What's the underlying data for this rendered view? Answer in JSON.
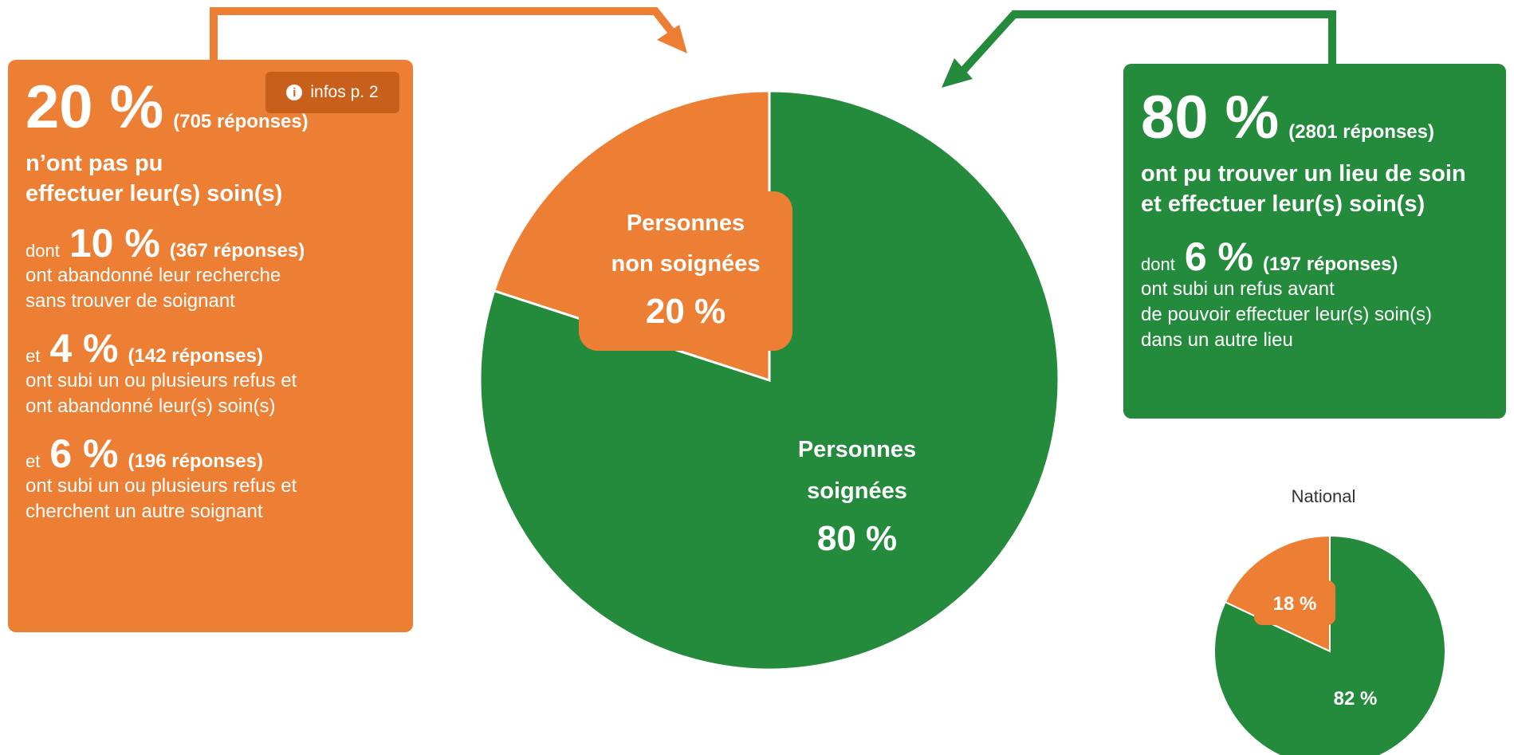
{
  "colors": {
    "orange": "#ec7f34",
    "green": "#248b3c",
    "badge": "#c85f1a"
  },
  "left_panel": {
    "headline": "20 %",
    "headline_responses": "(705 réponses)",
    "headline_text_1": "n’ont pas pu",
    "headline_text_2": "effectuer leur(s) soin(s)",
    "info_label": "infos p. 2",
    "info_icon": "info-circle-icon",
    "items": [
      {
        "prefix": "dont",
        "pct": "10 %",
        "responses": "(367 réponses)",
        "line1": "ont abandonné leur recherche",
        "line2": "sans trouver de soignant"
      },
      {
        "prefix": "et",
        "pct": "4 %",
        "responses": "(142 réponses)",
        "line1": "ont subi un ou plusieurs refus et",
        "line2": "ont abandonné leur(s) soin(s)"
      },
      {
        "prefix": "et",
        "pct": "6 %",
        "responses": "(196 réponses)",
        "line1": "ont subi un ou plusieurs refus et",
        "line2": "cherchent un autre soignant"
      }
    ]
  },
  "right_panel": {
    "headline": "80 %",
    "headline_responses": "(2801 réponses)",
    "headline_text_1": "ont pu trouver un lieu de soin",
    "headline_text_2": "et effectuer leur(s) soin(s)",
    "item": {
      "prefix": "dont",
      "pct": "6 %",
      "responses": "(197 réponses)",
      "line1": "ont subi un refus avant",
      "line2": "de pouvoir effectuer leur(s) soin(s)",
      "line3": "dans un autre lieu"
    }
  },
  "chart_data": [
    {
      "type": "pie",
      "slices": [
        {
          "label_1": "Personnes",
          "label_2": "non soignées",
          "value": 20,
          "value_label": "20 %",
          "color": "#ec7f34"
        },
        {
          "label_1": "Personnes",
          "label_2": "soignées",
          "value": 80,
          "value_label": "80 %",
          "color": "#248b3c"
        }
      ]
    },
    {
      "type": "pie",
      "title": "National",
      "slices": [
        {
          "value": 18,
          "value_label": "18 %",
          "color": "#ec7f34"
        },
        {
          "value": 82,
          "value_label": "82 %",
          "color": "#248b3c"
        }
      ]
    }
  ]
}
